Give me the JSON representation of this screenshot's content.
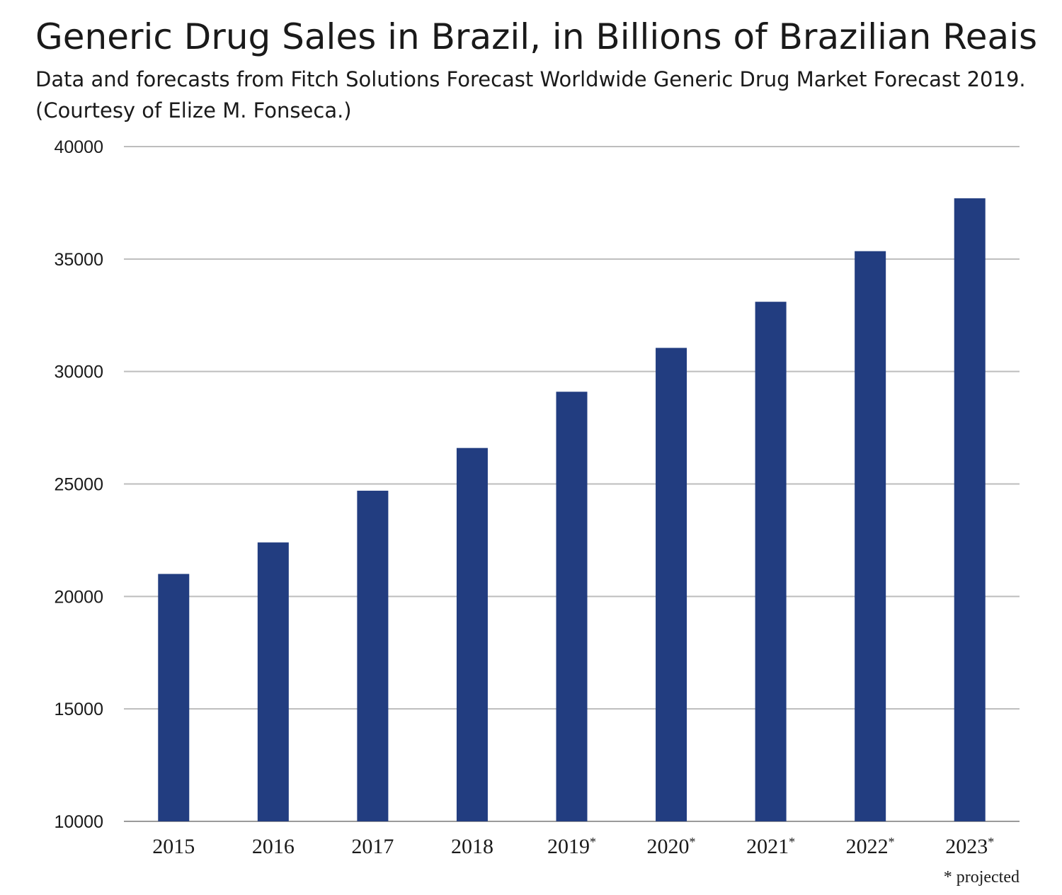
{
  "chart_data": {
    "type": "bar",
    "title": "Generic Drug Sales in Brazil, in Billions of Brazilian Reais",
    "subtitle": "Data and forecasts from Fitch Solutions Forecast Worldwide Generic Drug Market Forecast 2019. (Courtesy of Elize M. Fonseca.)",
    "categories": [
      "2015",
      "2016",
      "2017",
      "2018",
      "2019",
      "2020",
      "2021",
      "2022",
      "2023"
    ],
    "category_marks": [
      "",
      "",
      "",
      "",
      "*",
      "*",
      "*",
      "*",
      "*"
    ],
    "values": [
      21000,
      22400,
      24700,
      26600,
      29100,
      31050,
      33100,
      35350,
      37700
    ],
    "ylim": [
      10000,
      40000
    ],
    "yticks": [
      10000,
      15000,
      20000,
      25000,
      30000,
      35000,
      40000
    ],
    "grid": true,
    "legend": "none",
    "bar_color": "#223d80",
    "footnote": "* projected"
  }
}
